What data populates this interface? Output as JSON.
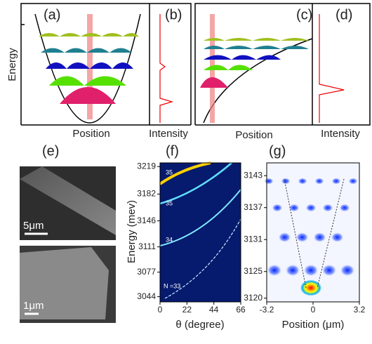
{
  "figure": {
    "a": {
      "label": "(a)",
      "y_label": "Energy",
      "x_label": "Position"
    },
    "b": {
      "label": "(b)",
      "x_label": "Intensity"
    },
    "c": {
      "label": "(c)",
      "x_label": "Position"
    },
    "d": {
      "label": "(d)",
      "x_label": "Intensity"
    },
    "e": {
      "label": "(e)",
      "scale_top": "5μm",
      "scale_bottom": "1μm"
    },
    "f": {
      "label": "(f)",
      "y_label": "Energy (mev)",
      "x_label": "θ (degree)",
      "xlim": [
        0,
        66
      ],
      "xticks": [
        0,
        22,
        44,
        66
      ],
      "ylim": [
        3037,
        3224
      ],
      "yticks": [
        3044,
        3077,
        3111,
        3146,
        3182,
        3219
      ],
      "annotations": [
        "35",
        "35",
        "34",
        "N =33"
      ]
    },
    "g": {
      "label": "(g)",
      "x_label": "Position (μm)",
      "xlim": [
        -3.2,
        3.2
      ],
      "xticks": [
        -3.2,
        0,
        3.2
      ],
      "ylim": [
        3119.3,
        3145.4
      ],
      "yticks": [
        3120,
        3125,
        3131,
        3137,
        3143
      ]
    }
  }
}
